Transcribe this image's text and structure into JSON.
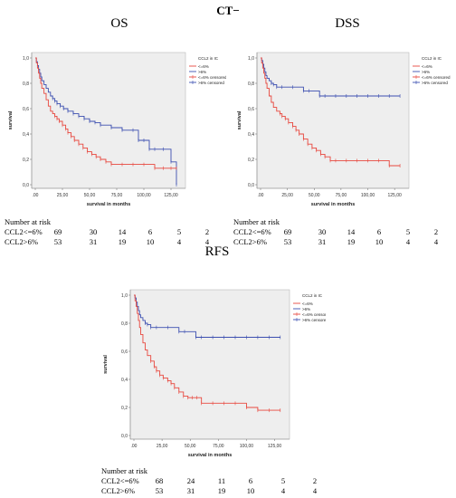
{
  "figure_title": "CT−",
  "panels": [
    {
      "id": "os",
      "title": "OS",
      "chart_data": {
        "type": "line",
        "title": "OS",
        "xlabel": "survival in months",
        "ylabel": "survival",
        "xlim": [
          0,
          135
        ],
        "ylim": [
          0,
          1.0
        ],
        "xticks": [
          ".00",
          "25,00",
          "50,00",
          "75,00",
          "100,00",
          "125,00"
        ],
        "yticks": [
          "0,0",
          "0,2",
          "0,4",
          "0,6",
          "0,8",
          "1,0"
        ],
        "legend_title": "CCL2 in IC",
        "legend": [
          "<=6%",
          ">6%",
          "<=6% censored",
          ">6% censored"
        ],
        "grid": false,
        "legend_position": "top-right",
        "series": [
          {
            "name": "<=6%",
            "color": "#3c4fb0",
            "x": [
              0,
              1,
              2,
              3,
              4,
              5,
              6,
              8,
              10,
              12,
              14,
              16,
              18,
              20,
              23,
              26,
              30,
              35,
              40,
              45,
              50,
              55,
              60,
              70,
              80,
              90,
              95,
              100,
              105,
              110,
              118,
              125,
              130
            ],
            "y": [
              1.0,
              0.97,
              0.94,
              0.91,
              0.88,
              0.85,
              0.82,
              0.79,
              0.76,
              0.73,
              0.7,
              0.68,
              0.66,
              0.64,
              0.62,
              0.6,
              0.58,
              0.56,
              0.54,
              0.52,
              0.5,
              0.49,
              0.47,
              0.45,
              0.43,
              0.43,
              0.35,
              0.35,
              0.28,
              0.28,
              0.28,
              0.18,
              0.0
            ]
          },
          {
            "name": ">6%",
            "color": "#e8483f",
            "x": [
              0,
              1,
              2,
              3,
              4,
              5,
              6,
              8,
              10,
              12,
              14,
              16,
              18,
              20,
              22,
              25,
              28,
              30,
              33,
              36,
              40,
              44,
              48,
              52,
              56,
              60,
              65,
              70,
              80,
              90,
              100,
              110,
              118,
              125,
              130
            ],
            "y": [
              1.0,
              0.96,
              0.92,
              0.88,
              0.84,
              0.8,
              0.76,
              0.72,
              0.67,
              0.62,
              0.58,
              0.56,
              0.54,
              0.52,
              0.5,
              0.47,
              0.44,
              0.41,
              0.38,
              0.35,
              0.32,
              0.29,
              0.26,
              0.24,
              0.22,
              0.2,
              0.18,
              0.16,
              0.16,
              0.16,
              0.16,
              0.13,
              0.13,
              0.13,
              0.13
            ]
          }
        ]
      },
      "risk_table": {
        "header": "Number at risk",
        "rows": [
          {
            "label": "CCL2<=6%",
            "values": [
              "69",
              "30",
              "14",
              "6",
              "5",
              "2"
            ]
          },
          {
            "label": "CCL2>6%",
            "values": [
              "53",
              "31",
              "19",
              "10",
              "4",
              "4"
            ]
          }
        ]
      }
    },
    {
      "id": "dss",
      "title": "DSS",
      "chart_data": {
        "type": "line",
        "title": "DSS",
        "xlabel": "survival in months",
        "ylabel": "survival",
        "xlim": [
          0,
          135
        ],
        "ylim": [
          0,
          1.0
        ],
        "xticks": [
          ".00",
          "25,00",
          "50,00",
          "75,00",
          "100,00",
          "125,00"
        ],
        "yticks": [
          "0,0",
          "0,2",
          "0,4",
          "0,6",
          "0,8",
          "1,0"
        ],
        "legend_title": "CCL2 in IC",
        "legend": [
          "<=6%",
          ">6%",
          "<=6% censored",
          ">6% censored"
        ],
        "grid": false,
        "legend_position": "top-right",
        "series": [
          {
            "name": "<=6%",
            "color": "#3c4fb0",
            "x": [
              0,
              1,
              2,
              3,
              4,
              5,
              6,
              8,
              10,
              12,
              15,
              20,
              30,
              40,
              45,
              55,
              60,
              70,
              80,
              90,
              100,
              110,
              120,
              130
            ],
            "y": [
              1.0,
              0.98,
              0.95,
              0.92,
              0.89,
              0.86,
              0.84,
              0.82,
              0.8,
              0.79,
              0.77,
              0.77,
              0.77,
              0.74,
              0.74,
              0.7,
              0.7,
              0.7,
              0.7,
              0.7,
              0.7,
              0.7,
              0.7,
              0.7
            ]
          },
          {
            "name": ">6%",
            "color": "#e8483f",
            "x": [
              0,
              1,
              2,
              3,
              4,
              5,
              6,
              8,
              10,
              12,
              15,
              18,
              20,
              23,
              26,
              30,
              33,
              36,
              40,
              44,
              48,
              52,
              56,
              60,
              65,
              70,
              80,
              90,
              100,
              110,
              120,
              130
            ],
            "y": [
              1.0,
              0.96,
              0.92,
              0.88,
              0.84,
              0.8,
              0.76,
              0.7,
              0.65,
              0.61,
              0.58,
              0.56,
              0.54,
              0.52,
              0.49,
              0.46,
              0.43,
              0.4,
              0.36,
              0.32,
              0.29,
              0.27,
              0.24,
              0.22,
              0.19,
              0.19,
              0.19,
              0.19,
              0.19,
              0.19,
              0.15,
              0.15
            ]
          }
        ]
      },
      "risk_table": {
        "header": "Number at risk",
        "rows": [
          {
            "label": "CCL2<=6%",
            "values": [
              "69",
              "30",
              "14",
              "6",
              "5",
              "2"
            ]
          },
          {
            "label": "CCL2>6%",
            "values": [
              "53",
              "31",
              "19",
              "10",
              "4",
              "4"
            ]
          }
        ]
      }
    },
    {
      "id": "rfs",
      "title": "RFS",
      "chart_data": {
        "type": "line",
        "title": "RFS",
        "xlabel": "survival in months",
        "ylabel": "survival",
        "xlim": [
          0,
          135
        ],
        "ylim": [
          0,
          1.0
        ],
        "xticks": [
          ".00",
          "25,00",
          "50,00",
          "75,00",
          "100,00",
          "125,00"
        ],
        "yticks": [
          "0,0",
          "0,2",
          "0,4",
          "0,6",
          "0,8",
          "1,0"
        ],
        "legend_title": "CCL2 in IC",
        "legend": [
          "<=6%",
          ">6%",
          "<=6% censored",
          ">6% censored"
        ],
        "grid": false,
        "legend_position": "top-right",
        "series": [
          {
            "name": "<=6%",
            "color": "#3c4fb0",
            "x": [
              0,
              1,
              2,
              3,
              4,
              5,
              6,
              8,
              10,
              12,
              15,
              20,
              30,
              40,
              45,
              55,
              60,
              70,
              80,
              90,
              100,
              110,
              120,
              130
            ],
            "y": [
              1.0,
              0.98,
              0.95,
              0.92,
              0.89,
              0.86,
              0.84,
              0.82,
              0.8,
              0.79,
              0.77,
              0.77,
              0.77,
              0.74,
              0.74,
              0.7,
              0.7,
              0.7,
              0.7,
              0.7,
              0.7,
              0.7,
              0.7,
              0.7
            ]
          },
          {
            "name": ">6%",
            "color": "#e8483f",
            "x": [
              0,
              1,
              2,
              3,
              4,
              5,
              6,
              8,
              10,
              12,
              15,
              18,
              20,
              23,
              26,
              30,
              33,
              36,
              40,
              44,
              48,
              52,
              56,
              60,
              70,
              80,
              90,
              100,
              110,
              120,
              130
            ],
            "y": [
              1.0,
              0.96,
              0.92,
              0.87,
              0.82,
              0.77,
              0.72,
              0.66,
              0.61,
              0.57,
              0.53,
              0.49,
              0.46,
              0.43,
              0.41,
              0.39,
              0.37,
              0.34,
              0.31,
              0.28,
              0.27,
              0.27,
              0.27,
              0.23,
              0.23,
              0.23,
              0.23,
              0.2,
              0.18,
              0.18,
              0.18
            ]
          }
        ]
      },
      "risk_table": {
        "header": "Number at risk",
        "rows": [
          {
            "label": "CCL2<=6%",
            "values": [
              "68",
              "24",
              "11",
              "6",
              "5",
              "2"
            ]
          },
          {
            "label": "CCL2>6%",
            "values": [
              "53",
              "31",
              "19",
              "10",
              "4",
              "4"
            ]
          }
        ]
      }
    }
  ]
}
